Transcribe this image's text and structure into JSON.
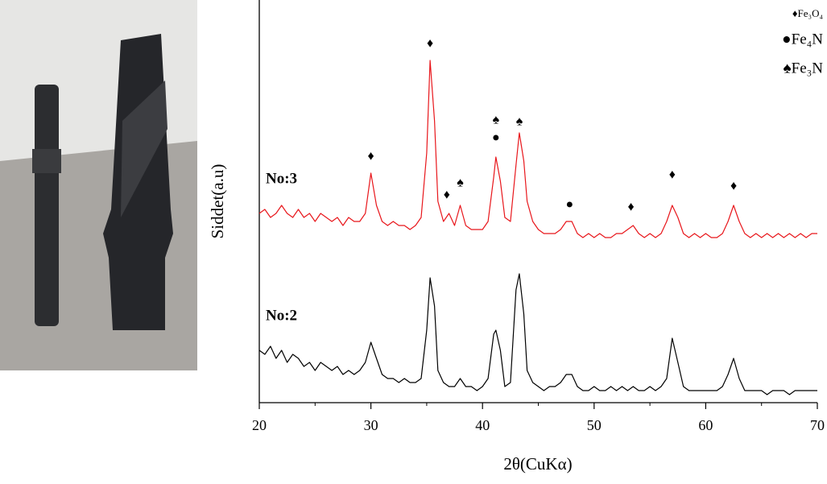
{
  "chart_data": {
    "type": "line",
    "xlabel": "2θ(CuKα)",
    "ylabel": "Siddet(a.u)",
    "x": [
      20,
      20.5,
      21,
      21.5,
      22,
      22.5,
      23,
      23.5,
      24,
      24.5,
      25,
      25.5,
      26,
      26.5,
      27,
      27.5,
      28,
      28.5,
      29,
      29.5,
      30,
      30.5,
      31,
      31.5,
      32,
      32.5,
      33,
      33.5,
      34,
      34.5,
      35,
      35.3,
      35.7,
      36,
      36.5,
      37,
      37.5,
      38,
      38.5,
      39,
      39.5,
      40,
      40.5,
      41,
      41.2,
      41.6,
      42,
      42.5,
      43,
      43.3,
      43.7,
      44,
      44.5,
      45,
      45.5,
      46,
      46.5,
      47,
      47.5,
      48,
      48.5,
      49,
      49.5,
      50,
      50.5,
      51,
      51.5,
      52,
      52.5,
      53,
      53.5,
      54,
      54.5,
      55,
      55.5,
      56,
      56.5,
      57,
      57.5,
      58,
      58.5,
      59,
      59.5,
      60,
      60.5,
      61,
      61.5,
      62,
      62.5,
      63,
      63.5,
      64,
      64.5,
      65,
      65.5,
      66,
      66.5,
      67,
      67.5,
      68,
      68.5,
      69,
      69.5,
      70
    ],
    "series": [
      {
        "name": "No:3",
        "color": "#e8161b",
        "values": [
          47,
          48,
          46,
          47,
          49,
          47,
          46,
          48,
          46,
          47,
          45,
          47,
          46,
          45,
          46,
          44,
          46,
          45,
          45,
          47,
          57,
          49,
          45,
          44,
          45,
          44,
          44,
          43,
          44,
          46,
          62,
          85,
          70,
          50,
          45,
          47,
          44,
          49,
          44,
          43,
          43,
          43,
          45,
          56,
          61,
          55,
          46,
          45,
          59,
          67,
          60,
          50,
          45,
          43,
          42,
          42,
          42,
          43,
          45,
          45,
          42,
          41,
          42,
          41,
          42,
          41,
          41,
          42,
          42,
          43,
          44,
          42,
          41,
          42,
          41,
          42,
          45,
          49,
          46,
          42,
          41,
          42,
          41,
          42,
          41,
          41,
          42,
          45,
          49,
          45,
          42,
          41,
          42,
          41,
          42,
          41,
          42,
          41,
          42,
          41,
          42,
          41,
          42,
          42
        ]
      },
      {
        "name": "No:2",
        "color": "#000000",
        "values": [
          13,
          12,
          14,
          11,
          13,
          10,
          12,
          11,
          9,
          10,
          8,
          10,
          9,
          8,
          9,
          7,
          8,
          7,
          8,
          10,
          15,
          11,
          7,
          6,
          6,
          5,
          6,
          5,
          5,
          6,
          18,
          31,
          24,
          8,
          5,
          4,
          4,
          6,
          4,
          4,
          3,
          4,
          6,
          17,
          18,
          13,
          4,
          5,
          28,
          32,
          22,
          8,
          5,
          4,
          3,
          4,
          4,
          5,
          7,
          7,
          4,
          3,
          3,
          4,
          3,
          3,
          4,
          3,
          4,
          3,
          4,
          3,
          3,
          4,
          3,
          4,
          6,
          16,
          10,
          4,
          3,
          3,
          3,
          3,
          3,
          3,
          4,
          7,
          11,
          6,
          3,
          3,
          3,
          3,
          2,
          3,
          3,
          3,
          2,
          3,
          3,
          3,
          3,
          3
        ]
      }
    ],
    "xlim": [
      20,
      70
    ],
    "xticks": [
      20,
      30,
      40,
      50,
      60,
      70
    ],
    "xminorticks": [
      25,
      35,
      45,
      55,
      65
    ],
    "ylim": [
      0,
      100
    ],
    "peak_markers": [
      {
        "x": 30,
        "y": 61,
        "label": "♦"
      },
      {
        "x": 35.3,
        "y": 89,
        "label": "♦"
      },
      {
        "x": 36.8,
        "y": 51.4,
        "label": "♦"
      },
      {
        "x": 38,
        "y": 54.4,
        "label": "♠"
      },
      {
        "x": 41.2,
        "y": 70,
        "label": "♠"
      },
      {
        "x": 41.2,
        "y": 65.6,
        "label": "●"
      },
      {
        "x": 43.3,
        "y": 69.6,
        "label": "♠"
      },
      {
        "x": 47.8,
        "y": 49,
        "label": "●"
      },
      {
        "x": 53.3,
        "y": 48.4,
        "label": "♦"
      },
      {
        "x": 57,
        "y": 56.4,
        "label": "♦"
      },
      {
        "x": 62.5,
        "y": 53.6,
        "label": "♦"
      }
    ],
    "phase_legend": [
      "♦Fe₃O₄",
      "●Fe₄N",
      "♠Fe₃N"
    ]
  }
}
